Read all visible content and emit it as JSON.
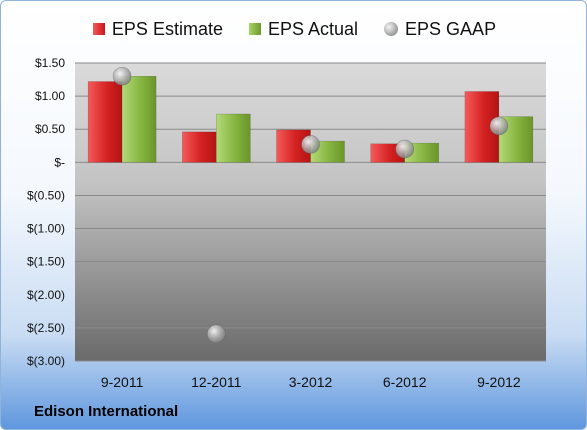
{
  "company": "Edison International",
  "legend": {
    "estimate": "EPS Estimate",
    "actual": "EPS Actual",
    "gaap": "EPS GAAP"
  },
  "colors": {
    "estimate": "#d0201f",
    "actual": "#7fae3a",
    "gaap": "#a6a6a6",
    "plot_bg_top": "#d9d9d9",
    "plot_bg_bottom": "#6e6e6e"
  },
  "chart_data": {
    "type": "bar",
    "categories": [
      "9-2011",
      "12-2011",
      "3-2012",
      "6-2012",
      "9-2012"
    ],
    "series": [
      {
        "name": "EPS Estimate",
        "type": "bar",
        "values": [
          1.22,
          0.46,
          0.49,
          0.28,
          1.07
        ]
      },
      {
        "name": "EPS Actual",
        "type": "bar",
        "values": [
          1.3,
          0.73,
          0.32,
          0.29,
          0.69
        ]
      },
      {
        "name": "EPS GAAP",
        "type": "scatter",
        "values": [
          1.3,
          -2.59,
          0.27,
          0.2,
          0.55
        ]
      }
    ],
    "ylim": [
      -3.0,
      1.5
    ],
    "yticks": [
      1.5,
      1.0,
      0.5,
      0.0,
      -0.5,
      -1.0,
      -1.5,
      -2.0,
      -2.5,
      -3.0
    ],
    "ytick_labels": [
      "$1.50",
      "$1.00",
      "$0.50",
      "$-",
      "$(0.50)",
      "$(1.00)",
      "$(1.50)",
      "$(2.00)",
      "$(2.50)",
      "$(3.00)"
    ],
    "grid": true,
    "legend_position": "top"
  }
}
